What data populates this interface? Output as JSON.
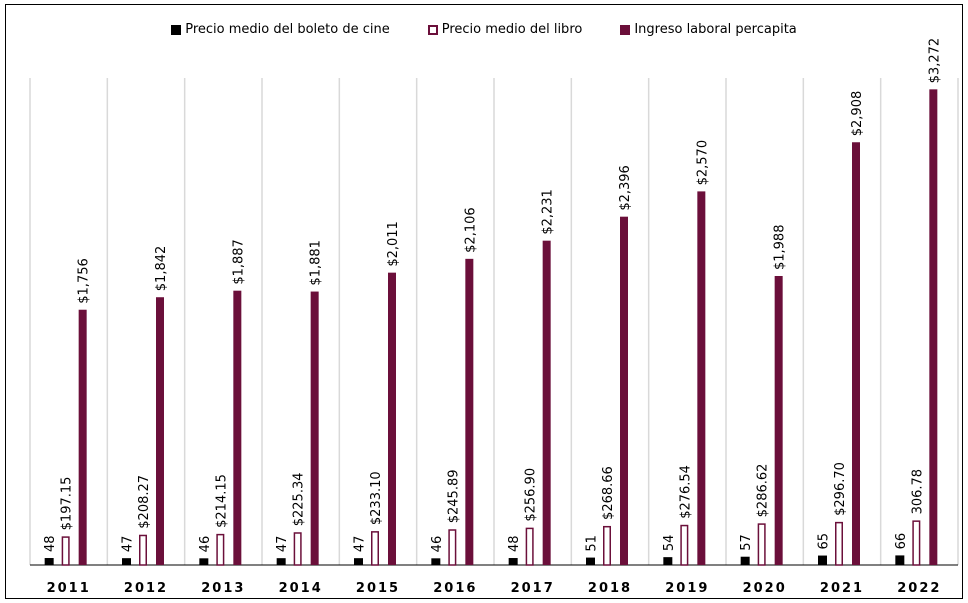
{
  "chart_data": {
    "type": "bar",
    "categories": [
      "2011",
      "2012",
      "2013",
      "2014",
      "2015",
      "2016",
      "2017",
      "2018",
      "2019",
      "2020",
      "2021",
      "2022"
    ],
    "series": [
      {
        "name": "Precio medio del boleto de cine",
        "values": [
          48,
          47,
          46,
          47,
          47,
          46,
          48,
          51,
          54,
          57,
          65,
          66
        ],
        "labels": [
          "48",
          "47",
          "46",
          "47",
          "47",
          "46",
          "48",
          "51",
          "54",
          "57",
          "65",
          "66"
        ],
        "color": "#000000",
        "style": "filled"
      },
      {
        "name": "Precio medio del libro",
        "values": [
          197.15,
          208.27,
          214.15,
          225.34,
          233.1,
          245.89,
          256.9,
          268.66,
          276.54,
          286.62,
          296.7,
          306.78
        ],
        "labels": [
          "$197.15",
          "$208.27",
          "$214.15",
          "$225.34",
          "$233.10",
          "$245.89",
          "$256.90",
          "$268.66",
          "$276.54",
          "$286.62",
          "$296.70",
          "306.78"
        ],
        "color": "#6b0f3a",
        "style": "outline"
      },
      {
        "name": "Ingreso laboral percapita",
        "values": [
          1756,
          1842,
          1887,
          1881,
          2011,
          2106,
          2231,
          2396,
          2570,
          1988,
          2908,
          3272
        ],
        "labels": [
          "$1,756",
          "$1,842",
          "$1,887",
          "$1,881",
          "$2,011",
          "$2,106",
          "$2,231",
          "$2,396",
          "$2,570",
          "$1,988",
          "$2,908",
          "$3,272"
        ],
        "color": "#6b0f3a",
        "style": "filled"
      }
    ],
    "ylim": [
      0,
      3350
    ],
    "grid": "vertical category separators",
    "legend_position": "top"
  }
}
